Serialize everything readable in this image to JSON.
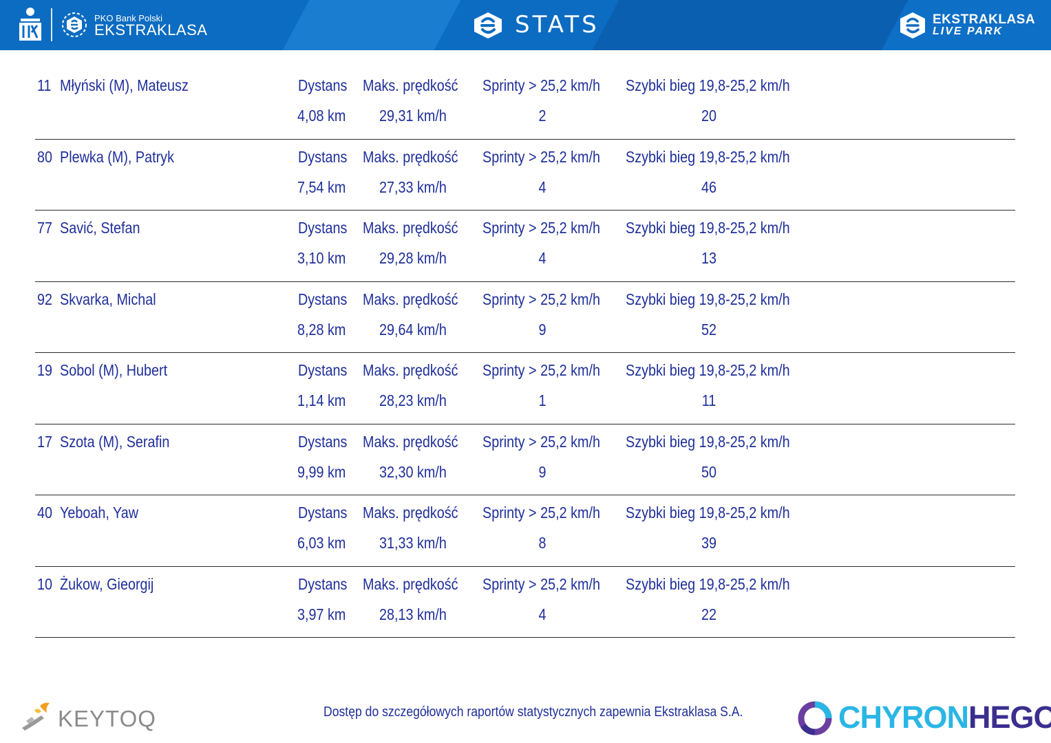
{
  "header": {
    "brand_top": "PKO Bank Polski",
    "brand_main": "EKSTRAKLASA",
    "title": "STATS",
    "livepark_line1": "EKSTRAKLASA",
    "livepark_line2": "LIVE PARK",
    "colors": {
      "bar": "#0c6cc1",
      "text": "#ffffff"
    },
    "icons": [
      "pko-logo-icon",
      "ekstraklasa-logo-icon",
      "stats-logo-icon",
      "livepark-logo-icon"
    ]
  },
  "labels": {
    "distance": "Dystans",
    "max_speed": "Maks. prędkość",
    "sprints": "Sprinty > 25,2 km/h",
    "fast_run": "Szybki bieg 19,8-25,2 km/h"
  },
  "players": [
    {
      "number": "11",
      "name": "Młyński (M), Mateusz",
      "distance": "4,08 km",
      "max_speed": "29,31 km/h",
      "sprints": "2",
      "fast_run": "20"
    },
    {
      "number": "80",
      "name": "Plewka (M), Patryk",
      "distance": "7,54 km",
      "max_speed": "27,33 km/h",
      "sprints": "4",
      "fast_run": "46"
    },
    {
      "number": "77",
      "name": "Savić, Stefan",
      "distance": "3,10 km",
      "max_speed": "29,28 km/h",
      "sprints": "4",
      "fast_run": "13"
    },
    {
      "number": "92",
      "name": "Skvarka, Michal",
      "distance": "8,28 km",
      "max_speed": "29,64 km/h",
      "sprints": "9",
      "fast_run": "52"
    },
    {
      "number": "19",
      "name": "Sobol (M), Hubert",
      "distance": "1,14 km",
      "max_speed": "28,23 km/h",
      "sprints": "1",
      "fast_run": "11"
    },
    {
      "number": "17",
      "name": "Szota (M), Serafin",
      "distance": "9,99 km",
      "max_speed": "32,30 km/h",
      "sprints": "9",
      "fast_run": "50"
    },
    {
      "number": "40",
      "name": "Yeboah, Yaw",
      "distance": "6,03 km",
      "max_speed": "31,33 km/h",
      "sprints": "8",
      "fast_run": "39"
    },
    {
      "number": "10",
      "name": "Żukow, Gieorgij",
      "distance": "3,97 km",
      "max_speed": "28,13 km/h",
      "sprints": "4",
      "fast_run": "22"
    }
  ],
  "footer": {
    "note": "Dostęp do szczegółowych raportów statystycznych zapewnia Ekstraklasa S.A.",
    "keytoq": "KEYTOQ",
    "chyron_part1": "CHYRON",
    "chyron_part2": "HEGO",
    "colors": {
      "text": "#1f2f9a",
      "keytoq": "#8a8a8a",
      "chyron": "#2ab6e4",
      "hego": "#3a2f8f"
    }
  }
}
